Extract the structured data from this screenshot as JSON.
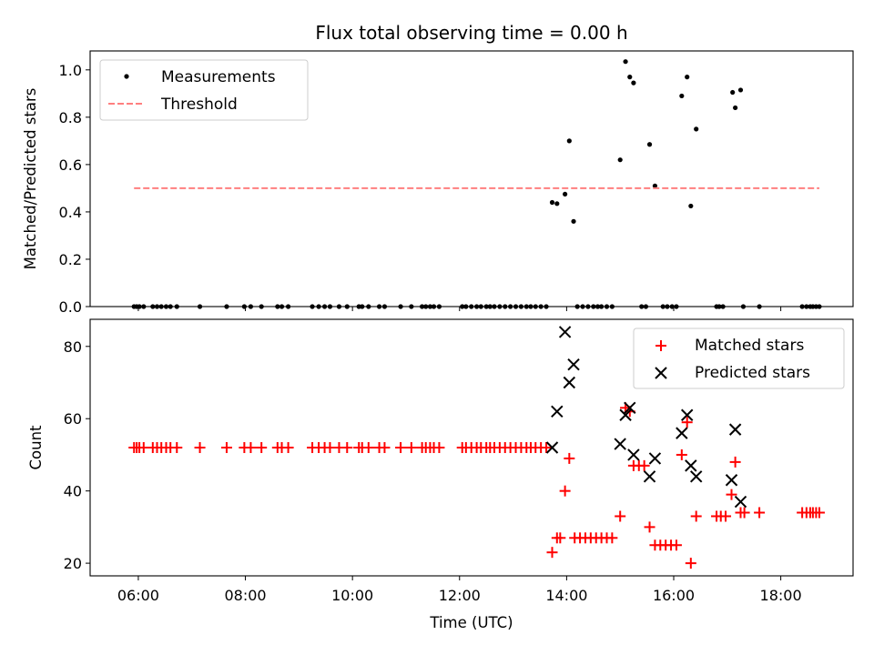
{
  "chart_data": [
    {
      "type": "scatter",
      "title": "Flux total observing time = 0.00 h",
      "xlabel": "",
      "ylabel": "Matched/Predicted stars",
      "x_unit": "hours (UTC)",
      "xlim": [
        5.1,
        19.35
      ],
      "ylim": [
        0.0,
        1.08
      ],
      "y_ticks": [
        0.0,
        0.2,
        0.4,
        0.6,
        0.8,
        1.0
      ],
      "y_tick_labels": [
        "0.0",
        "0.2",
        "0.4",
        "0.6",
        "0.8",
        "1.0"
      ],
      "x_ticks": [
        6,
        8,
        10,
        12,
        14,
        16,
        18
      ],
      "x_tick_labels": [],
      "legend_position": "top-left",
      "legend": [
        "Measurements",
        "Threshold"
      ],
      "series": [
        {
          "name": "Measurements",
          "color": "#000000",
          "marker": "dot",
          "points": [
            [
              5.92,
              0.0
            ],
            [
              5.97,
              0.0
            ],
            [
              6.02,
              0.0
            ],
            [
              6.1,
              0.0
            ],
            [
              6.27,
              0.0
            ],
            [
              6.35,
              0.0
            ],
            [
              6.43,
              0.0
            ],
            [
              6.52,
              0.0
            ],
            [
              6.6,
              0.0
            ],
            [
              6.72,
              0.0
            ],
            [
              7.15,
              0.0
            ],
            [
              7.65,
              0.0
            ],
            [
              7.98,
              0.0
            ],
            [
              8.1,
              0.0
            ],
            [
              8.3,
              0.0
            ],
            [
              8.6,
              0.0
            ],
            [
              8.68,
              0.0
            ],
            [
              8.8,
              0.0
            ],
            [
              9.25,
              0.0
            ],
            [
              9.37,
              0.0
            ],
            [
              9.48,
              0.0
            ],
            [
              9.58,
              0.0
            ],
            [
              9.75,
              0.0
            ],
            [
              9.9,
              0.0
            ],
            [
              10.12,
              0.0
            ],
            [
              10.18,
              0.0
            ],
            [
              10.3,
              0.0
            ],
            [
              10.5,
              0.0
            ],
            [
              10.6,
              0.0
            ],
            [
              10.9,
              0.0
            ],
            [
              11.1,
              0.0
            ],
            [
              11.3,
              0.0
            ],
            [
              11.37,
              0.0
            ],
            [
              11.45,
              0.0
            ],
            [
              11.52,
              0.0
            ],
            [
              11.62,
              0.0
            ],
            [
              12.05,
              0.0
            ],
            [
              12.12,
              0.0
            ],
            [
              12.22,
              0.0
            ],
            [
              12.32,
              0.0
            ],
            [
              12.4,
              0.0
            ],
            [
              12.5,
              0.0
            ],
            [
              12.57,
              0.0
            ],
            [
              12.65,
              0.0
            ],
            [
              12.75,
              0.0
            ],
            [
              12.85,
              0.0
            ],
            [
              12.95,
              0.0
            ],
            [
              13.05,
              0.0
            ],
            [
              13.15,
              0.0
            ],
            [
              13.25,
              0.0
            ],
            [
              13.33,
              0.0
            ],
            [
              13.42,
              0.0
            ],
            [
              13.52,
              0.0
            ],
            [
              13.62,
              0.0
            ],
            [
              14.2,
              0.0
            ],
            [
              14.3,
              0.0
            ],
            [
              14.4,
              0.0
            ],
            [
              14.5,
              0.0
            ],
            [
              14.58,
              0.0
            ],
            [
              14.65,
              0.0
            ],
            [
              14.75,
              0.0
            ],
            [
              14.85,
              0.0
            ],
            [
              15.4,
              0.0
            ],
            [
              15.48,
              0.0
            ],
            [
              15.8,
              0.0
            ],
            [
              15.88,
              0.0
            ],
            [
              15.97,
              0.0
            ],
            [
              16.05,
              0.0
            ],
            [
              16.8,
              0.0
            ],
            [
              16.85,
              0.0
            ],
            [
              16.92,
              0.0
            ],
            [
              17.3,
              0.0
            ],
            [
              17.6,
              0.0
            ],
            [
              18.4,
              0.0
            ],
            [
              18.48,
              0.0
            ],
            [
              18.55,
              0.0
            ],
            [
              18.6,
              0.0
            ],
            [
              18.66,
              0.0
            ],
            [
              18.72,
              0.0
            ],
            [
              13.73,
              0.44
            ],
            [
              13.82,
              0.435
            ],
            [
              13.97,
              0.475
            ],
            [
              14.05,
              0.7
            ],
            [
              14.13,
              0.36
            ],
            [
              15.0,
              0.62
            ],
            [
              15.1,
              1.035
            ],
            [
              15.18,
              0.97
            ],
            [
              15.25,
              0.945
            ],
            [
              15.55,
              0.685
            ],
            [
              15.65,
              0.51
            ],
            [
              16.15,
              0.89
            ],
            [
              16.25,
              0.97
            ],
            [
              16.32,
              0.425
            ],
            [
              16.42,
              0.75
            ],
            [
              17.1,
              0.905
            ],
            [
              17.15,
              0.84
            ],
            [
              17.25,
              0.915
            ]
          ]
        },
        {
          "name": "Threshold",
          "color": "#ff7f7f",
          "style": "dashed",
          "points": [
            [
              5.92,
              0.5
            ],
            [
              18.72,
              0.5
            ]
          ]
        }
      ]
    },
    {
      "type": "scatter",
      "title": "",
      "xlabel": "Time (UTC)",
      "ylabel": "Count",
      "x_unit": "hours (UTC)",
      "xlim": [
        5.1,
        19.35
      ],
      "ylim": [
        16.5,
        87.5
      ],
      "y_ticks": [
        20,
        40,
        60,
        80
      ],
      "y_tick_labels": [
        "20",
        "40",
        "60",
        "80"
      ],
      "x_ticks": [
        6,
        8,
        10,
        12,
        14,
        16,
        18
      ],
      "x_tick_labels": [
        "06:00",
        "08:00",
        "10:00",
        "12:00",
        "14:00",
        "16:00",
        "18:00"
      ],
      "legend_position": "top-right",
      "legend": [
        "Matched stars",
        "Predicted stars"
      ],
      "series": [
        {
          "name": "Matched stars",
          "color": "#ff0000",
          "marker": "plus",
          "points": [
            [
              5.92,
              52
            ],
            [
              5.97,
              52
            ],
            [
              6.02,
              52
            ],
            [
              6.1,
              52
            ],
            [
              6.27,
              52
            ],
            [
              6.35,
              52
            ],
            [
              6.43,
              52
            ],
            [
              6.52,
              52
            ],
            [
              6.6,
              52
            ],
            [
              6.72,
              52
            ],
            [
              7.15,
              52
            ],
            [
              7.65,
              52
            ],
            [
              7.98,
              52
            ],
            [
              8.1,
              52
            ],
            [
              8.3,
              52
            ],
            [
              8.6,
              52
            ],
            [
              8.68,
              52
            ],
            [
              8.8,
              52
            ],
            [
              9.25,
              52
            ],
            [
              9.37,
              52
            ],
            [
              9.48,
              52
            ],
            [
              9.58,
              52
            ],
            [
              9.75,
              52
            ],
            [
              9.9,
              52
            ],
            [
              10.12,
              52
            ],
            [
              10.18,
              52
            ],
            [
              10.3,
              52
            ],
            [
              10.5,
              52
            ],
            [
              10.6,
              52
            ],
            [
              10.9,
              52
            ],
            [
              11.1,
              52
            ],
            [
              11.3,
              52
            ],
            [
              11.37,
              52
            ],
            [
              11.45,
              52
            ],
            [
              11.52,
              52
            ],
            [
              11.62,
              52
            ],
            [
              12.05,
              52
            ],
            [
              12.12,
              52
            ],
            [
              12.22,
              52
            ],
            [
              12.32,
              52
            ],
            [
              12.4,
              52
            ],
            [
              12.5,
              52
            ],
            [
              12.57,
              52
            ],
            [
              12.65,
              52
            ],
            [
              12.75,
              52
            ],
            [
              12.85,
              52
            ],
            [
              12.95,
              52
            ],
            [
              13.05,
              52
            ],
            [
              13.15,
              52
            ],
            [
              13.25,
              52
            ],
            [
              13.33,
              52
            ],
            [
              13.42,
              52
            ],
            [
              13.52,
              52
            ],
            [
              13.62,
              52
            ],
            [
              13.73,
              23
            ],
            [
              13.82,
              27
            ],
            [
              13.88,
              27
            ],
            [
              13.97,
              40
            ],
            [
              14.05,
              49
            ],
            [
              14.15,
              27
            ],
            [
              14.25,
              27
            ],
            [
              14.35,
              27
            ],
            [
              14.45,
              27
            ],
            [
              14.55,
              27
            ],
            [
              14.65,
              27
            ],
            [
              14.75,
              27
            ],
            [
              14.85,
              27
            ],
            [
              15.0,
              33
            ],
            [
              15.1,
              63
            ],
            [
              15.18,
              62
            ],
            [
              15.25,
              47
            ],
            [
              15.35,
              47
            ],
            [
              15.45,
              47
            ],
            [
              15.55,
              30
            ],
            [
              15.65,
              25
            ],
            [
              15.75,
              25
            ],
            [
              15.85,
              25
            ],
            [
              15.95,
              25
            ],
            [
              16.05,
              25
            ],
            [
              16.15,
              50
            ],
            [
              16.25,
              59
            ],
            [
              16.32,
              20
            ],
            [
              16.42,
              33
            ],
            [
              16.8,
              33
            ],
            [
              16.88,
              33
            ],
            [
              16.97,
              33
            ],
            [
              17.08,
              39
            ],
            [
              17.15,
              48
            ],
            [
              17.25,
              34
            ],
            [
              17.32,
              34
            ],
            [
              17.6,
              34
            ],
            [
              18.4,
              34
            ],
            [
              18.48,
              34
            ],
            [
              18.55,
              34
            ],
            [
              18.6,
              34
            ],
            [
              18.66,
              34
            ],
            [
              18.72,
              34
            ]
          ]
        },
        {
          "name": "Predicted stars",
          "color": "#000000",
          "marker": "x",
          "points": [
            [
              13.73,
              52
            ],
            [
              13.82,
              62
            ],
            [
              13.97,
              84
            ],
            [
              14.05,
              70
            ],
            [
              14.13,
              75
            ],
            [
              15.0,
              53
            ],
            [
              15.1,
              61
            ],
            [
              15.18,
              63
            ],
            [
              15.25,
              50
            ],
            [
              15.55,
              44
            ],
            [
              15.65,
              49
            ],
            [
              16.15,
              56
            ],
            [
              16.25,
              61
            ],
            [
              16.32,
              47
            ],
            [
              16.42,
              44
            ],
            [
              17.08,
              43
            ],
            [
              17.15,
              57
            ],
            [
              17.25,
              37
            ]
          ]
        }
      ]
    }
  ]
}
